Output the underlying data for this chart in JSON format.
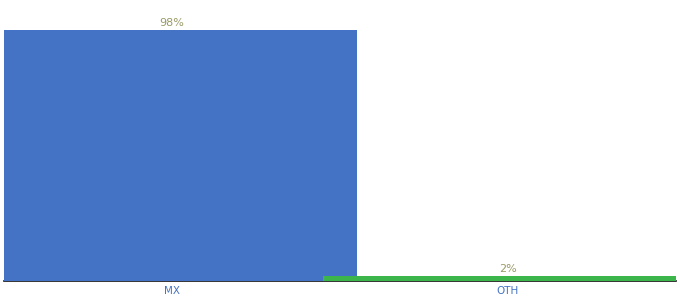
{
  "categories": [
    "MX",
    "OTH"
  ],
  "values": [
    98,
    2
  ],
  "bar_colors": [
    "#4472C4",
    "#3CB54A"
  ],
  "label_color": "#999966",
  "label_fontsize": 8,
  "tick_fontsize": 7.5,
  "tick_color": "#4472C4",
  "ylim": [
    0,
    108
  ],
  "background_color": "#ffffff",
  "bar_width": 0.55,
  "bar_positions": [
    0.25,
    0.75
  ]
}
